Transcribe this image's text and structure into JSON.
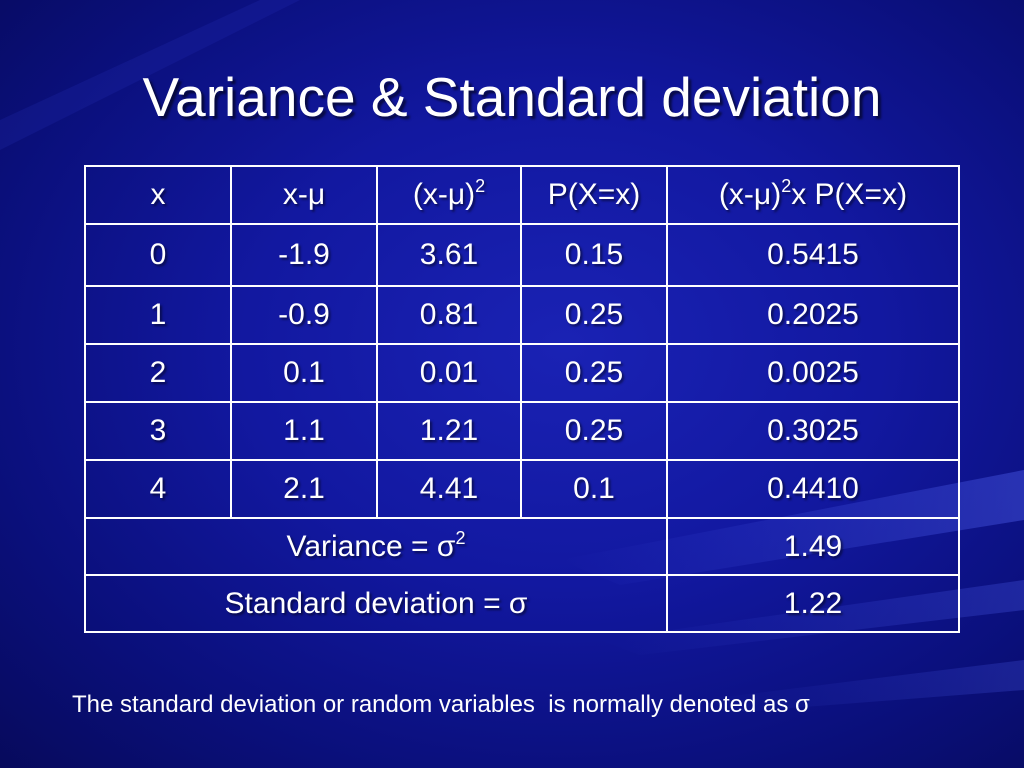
{
  "title": "Variance & Standard deviation",
  "table": {
    "header": {
      "x": "x",
      "x_minus_mu": "x-μ",
      "sq_base": "(x-μ)",
      "sq_exp": "2",
      "p": "P(X=x)",
      "prod_base": "(x-μ)",
      "prod_exp": "2",
      "prod_tail": "x P(X=x)"
    },
    "rows": [
      [
        "0",
        "-1.9",
        "3.61",
        "0.15",
        "0.5415"
      ],
      [
        "1",
        "-0.9",
        "0.81",
        "0.25",
        "0.2025"
      ],
      [
        "2",
        "0.1",
        "0.01",
        "0.25",
        "0.0025"
      ],
      [
        "3",
        "1.1",
        "1.21",
        "0.25",
        "0.3025"
      ],
      [
        "4",
        "2.1",
        "4.41",
        "0.1",
        "0.4410"
      ]
    ],
    "variance": {
      "label": "Variance = σ",
      "exp": "2",
      "value": "1.49"
    },
    "std_dev": {
      "label": "Standard deviation = σ",
      "value": "1.22"
    }
  },
  "footnote": "The standard deviation or random variables  is normally denoted as σ"
}
